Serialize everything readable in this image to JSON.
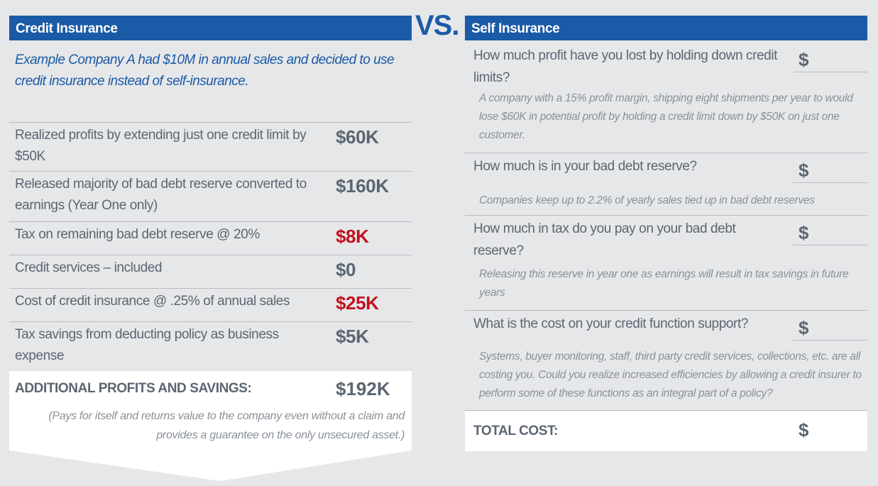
{
  "left": {
    "title": "Credit Insurance",
    "intro": "Example Company A had $10M in annual sales and decided to use credit insurance instead of self-insurance.",
    "rows": [
      {
        "label": "Realized profits by extending just one credit limit by $50K",
        "value": "$60K",
        "color": "#5b6671"
      },
      {
        "label": "Released majority of bad debt reserve converted to earnings (Year One only)",
        "value": "$160K",
        "color": "#5b6671"
      },
      {
        "label": "Tax on remaining bad debt reserve @ 20%",
        "value": "$8K",
        "color": "#c1121f"
      },
      {
        "label": "Credit services – included",
        "value": "$0",
        "color": "#5b6671"
      },
      {
        "label": "Cost of credit insurance @ .25% of annual sales",
        "value": "$25K",
        "color": "#c1121f"
      },
      {
        "label": "Tax savings from deducting policy as business expense",
        "value": "$5K",
        "color": "#5b6671"
      }
    ],
    "total": {
      "label": "ADDITIONAL PROFITS AND SAVINGS:",
      "value": "$192K",
      "note": "(Pays for itself and returns value to the company even without a claim and provides a guarantee on the only unsecured asset.)"
    }
  },
  "vs": "VS.",
  "right": {
    "title": "Self Insurance",
    "questions": [
      {
        "question": "How much profit have you lost by holding down credit limits?",
        "answer": "$",
        "note": "A company with a 15% profit margin, shipping eight shipments per year to would lose $60K in potential profit by holding a credit limit down by $50K on just one customer."
      },
      {
        "question": "How much is in your bad debt reserve?",
        "answer": "$",
        "note": "Companies keep up to 2.2% of yearly sales tied up in bad debt reserves"
      },
      {
        "question": "How much in tax do you pay on your bad debt reserve?",
        "answer": "$",
        "note": "Releasing this reserve in year one as earnings will result in tax savings in future years"
      },
      {
        "question": "What is the cost on your credit function support?",
        "answer": "$",
        "note": "Systems, buyer monitoring, staff, third party credit services, collections, etc. are all costing you. Could you realize increased efficiencies by allowing a credit insurer to perform some of these functions as an integral part of a policy?"
      }
    ],
    "total": {
      "label": "TOTAL COST:",
      "answer": "$"
    }
  }
}
